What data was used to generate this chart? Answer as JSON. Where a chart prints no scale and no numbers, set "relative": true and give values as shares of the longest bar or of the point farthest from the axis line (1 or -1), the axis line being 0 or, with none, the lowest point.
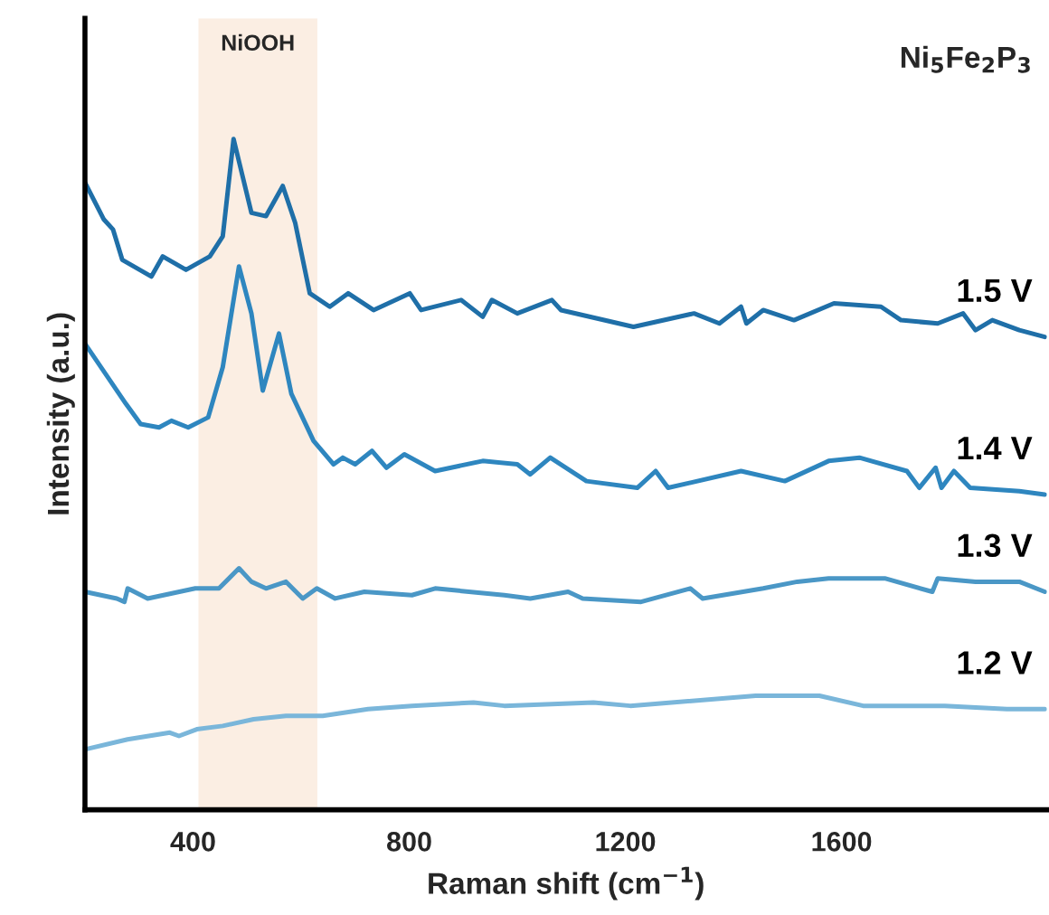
{
  "chart_data": {
    "type": "line",
    "relative": true,
    "xlabel": "Raman shift (cm$^{−1}$)",
    "ylabel": "Intensity (a.u.)",
    "xlim": [
      200,
      1980
    ],
    "xticks": [
      400,
      800,
      1200,
      1600
    ],
    "grid": false,
    "legend": false,
    "marker": "none",
    "line_style": "solid",
    "annotations": [
      "Ni$_{5}$Fe$_{2}$P$_{3}$"
    ],
    "bands": [
      {
        "axis": "x",
        "from": 410,
        "to": 630,
        "label": "NiOOH",
        "color": "#fbeee3"
      }
    ],
    "series": [
      {
        "name": "1.5 V",
        "color": "#1f6fa8",
        "x": [
          200,
          235,
          252,
          269,
          323,
          344,
          387,
          431,
          455,
          475,
          508,
          535,
          566,
          589,
          616,
          653,
          687,
          734,
          801,
          822,
          896,
          936,
          953,
          1000,
          1064,
          1081,
          1215,
          1327,
          1374,
          1414,
          1424,
          1455,
          1512,
          1586,
          1673,
          1710,
          1778,
          1825,
          1848,
          1879,
          1929,
          1976
        ],
        "values": [
          0.935,
          0.88,
          0.865,
          0.82,
          0.795,
          0.825,
          0.805,
          0.825,
          0.855,
          1.0,
          0.89,
          0.885,
          0.93,
          0.875,
          0.77,
          0.75,
          0.77,
          0.745,
          0.77,
          0.745,
          0.76,
          0.735,
          0.76,
          0.74,
          0.76,
          0.745,
          0.72,
          0.74,
          0.725,
          0.75,
          0.725,
          0.745,
          0.73,
          0.755,
          0.75,
          0.73,
          0.725,
          0.74,
          0.715,
          0.73,
          0.715,
          0.705
        ]
      },
      {
        "name": "1.4 V",
        "color": "#2e86bf",
        "x": [
          200,
          276,
          303,
          337,
          360,
          391,
          428,
          455,
          485,
          508,
          529,
          559,
          582,
          623,
          660,
          677,
          700,
          731,
          758,
          791,
          848,
          936,
          1000,
          1024,
          1061,
          1128,
          1222,
          1256,
          1279,
          1414,
          1495,
          1576,
          1633,
          1721,
          1744,
          1774,
          1785,
          1808,
          1838,
          1929,
          1976
        ],
        "values": [
          0.695,
          0.605,
          0.575,
          0.57,
          0.58,
          0.57,
          0.585,
          0.66,
          0.81,
          0.74,
          0.625,
          0.71,
          0.62,
          0.55,
          0.515,
          0.525,
          0.515,
          0.535,
          0.51,
          0.53,
          0.505,
          0.52,
          0.515,
          0.5,
          0.525,
          0.49,
          0.48,
          0.505,
          0.48,
          0.505,
          0.49,
          0.52,
          0.525,
          0.505,
          0.48,
          0.51,
          0.48,
          0.505,
          0.48,
          0.475,
          0.47
        ]
      },
      {
        "name": "1.3 V",
        "color": "#4a97c6",
        "x": [
          200,
          259,
          273,
          279,
          316,
          404,
          448,
          485,
          508,
          535,
          572,
          603,
          629,
          663,
          717,
          805,
          848,
          976,
          1024,
          1094,
          1121,
          1229,
          1320,
          1343,
          1455,
          1518,
          1576,
          1680,
          1768,
          1778,
          1848,
          1929,
          1976
        ],
        "values": [
          0.325,
          0.315,
          0.31,
          0.33,
          0.315,
          0.33,
          0.33,
          0.36,
          0.34,
          0.33,
          0.34,
          0.315,
          0.33,
          0.315,
          0.325,
          0.32,
          0.33,
          0.32,
          0.315,
          0.325,
          0.315,
          0.31,
          0.33,
          0.315,
          0.33,
          0.34,
          0.345,
          0.345,
          0.325,
          0.345,
          0.34,
          0.34,
          0.325
        ]
      },
      {
        "name": "1.2 V",
        "color": "#7ab6da",
        "x": [
          200,
          279,
          357,
          374,
          407,
          455,
          512,
          572,
          640,
          724,
          805,
          919,
          976,
          1141,
          1209,
          1441,
          1559,
          1640,
          1791,
          1906,
          1976
        ],
        "values": [
          0.09,
          0.105,
          0.115,
          0.11,
          0.12,
          0.125,
          0.135,
          0.14,
          0.14,
          0.15,
          0.155,
          0.16,
          0.155,
          0.16,
          0.155,
          0.17,
          0.17,
          0.155,
          0.155,
          0.15,
          0.15
        ]
      }
    ]
  }
}
